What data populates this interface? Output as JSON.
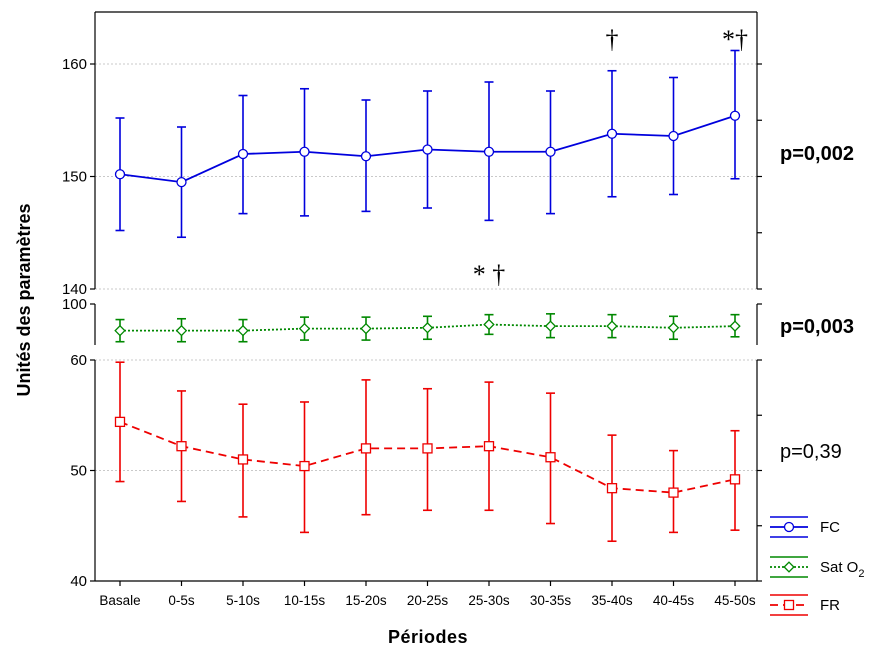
{
  "chart_data": {
    "type": "line",
    "xlabel": "Périodes",
    "ylabel": "Unités des paramètres",
    "categories": [
      "Basale",
      "0-5s",
      "5-10s",
      "10-15s",
      "15-20s",
      "20-25s",
      "25-30s",
      "30-35s",
      "35-40s",
      "40-45s",
      "45-50s"
    ],
    "panels": [
      {
        "id": "fc",
        "ylim": [
          140,
          165
        ],
        "yticks": [
          140,
          150,
          160
        ],
        "grid": true,
        "pvalue": "p=0,002",
        "pvalue_bold": true,
        "series": [
          {
            "name": "FC",
            "color": "#0000dd",
            "marker": "circle",
            "linestyle": "solid",
            "values": [
              150.2,
              149.5,
              152.0,
              152.2,
              151.8,
              152.4,
              152.2,
              152.2,
              153.8,
              153.6,
              155.4
            ],
            "lower": [
              145.2,
              144.6,
              146.7,
              146.5,
              146.9,
              147.2,
              146.1,
              146.7,
              148.2,
              148.4,
              149.8
            ],
            "upper": [
              155.2,
              154.4,
              157.2,
              157.8,
              156.8,
              157.6,
              158.4,
              157.6,
              159.4,
              158.8,
              161.2
            ]
          }
        ],
        "annotations": [
          {
            "category": "35-40s",
            "text": "†",
            "value": 163.0
          },
          {
            "category": "45-50s",
            "text": "*†",
            "value": 163.0
          }
        ]
      },
      {
        "id": "sat",
        "ylim": [
          90,
          100
        ],
        "yticks": [
          100
        ],
        "grid": false,
        "pvalue": "p=0,003",
        "pvalue_bold": true,
        "series": [
          {
            "name": "Sat O2",
            "color": "#008800",
            "marker": "diamond",
            "linestyle": "dotted",
            "values": [
              93.5,
              93.5,
              93.5,
              94.0,
              94.0,
              94.2,
              95.0,
              94.6,
              94.6,
              94.2,
              94.6
            ],
            "lower": [
              90.8,
              90.8,
              90.8,
              91.2,
              91.2,
              91.4,
              92.6,
              91.8,
              91.8,
              91.4,
              92.0
            ],
            "upper": [
              96.2,
              96.4,
              96.2,
              96.8,
              96.8,
              97.0,
              97.4,
              97.6,
              97.4,
              97.0,
              97.4
            ]
          }
        ],
        "annotations": [
          {
            "category": "25-30s",
            "text": "* †",
            "value": 0
          }
        ]
      },
      {
        "id": "fr",
        "ylim": [
          40,
          60
        ],
        "yticks": [
          40,
          50,
          60
        ],
        "grid": true,
        "pvalue": "p=0,39",
        "pvalue_bold": false,
        "series": [
          {
            "name": "FR",
            "color": "#ee0000",
            "marker": "square",
            "linestyle": "dashed",
            "values": [
              54.4,
              52.2,
              51.0,
              50.4,
              52.0,
              52.0,
              52.2,
              51.2,
              48.4,
              48.0,
              49.2
            ],
            "lower": [
              49.0,
              47.2,
              45.8,
              44.4,
              46.0,
              46.4,
              46.4,
              45.2,
              43.6,
              44.4,
              44.6
            ],
            "upper": [
              59.8,
              57.2,
              56.0,
              56.2,
              58.2,
              57.4,
              58.0,
              57.0,
              53.2,
              51.8,
              53.6
            ]
          }
        ],
        "annotations": []
      }
    ],
    "legend": {
      "placement": "bottom-right",
      "entries": [
        {
          "label": "FC",
          "series": "FC"
        },
        {
          "label_main": "Sat O",
          "label_sub": "2",
          "series": "Sat O2"
        },
        {
          "label": "FR",
          "series": "FR"
        }
      ]
    }
  }
}
